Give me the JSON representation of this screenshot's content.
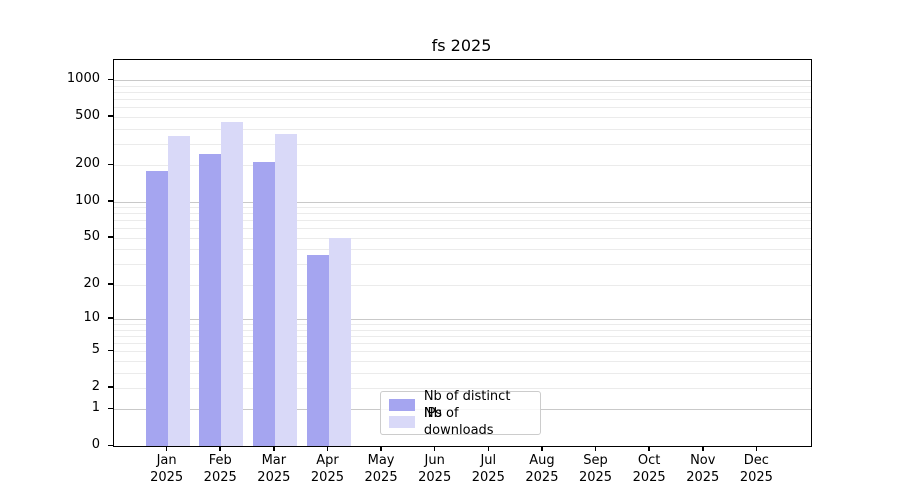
{
  "chart_data": {
    "type": "bar",
    "title": "fs 2025",
    "categories": [
      "Jan",
      "Feb",
      "Mar",
      "Apr",
      "May",
      "Jun",
      "Jul",
      "Aug",
      "Sep",
      "Oct",
      "Nov",
      "Dec"
    ],
    "x_tick_second_line": "2025",
    "series": [
      {
        "name": "Nb of distinct IPs",
        "color": "#a5a5f0",
        "values": [
          180,
          248,
          212,
          36,
          0,
          0,
          0,
          0,
          0,
          0,
          0,
          0
        ]
      },
      {
        "name": "Nb of downloads",
        "color": "#d9d9f8",
        "values": [
          350,
          452,
          362,
          50,
          0,
          0,
          0,
          0,
          0,
          0,
          0,
          0
        ]
      }
    ],
    "yscale": "log10(1+x)",
    "ylim": [
      0,
      1480
    ],
    "y_ticks": [
      0,
      1,
      2,
      5,
      10,
      20,
      50,
      100,
      200,
      500,
      1000
    ],
    "grid": {
      "major": [
        1,
        10,
        100,
        1000
      ],
      "minor": [
        2,
        3,
        4,
        5,
        6,
        7,
        8,
        9,
        20,
        30,
        40,
        50,
        60,
        70,
        80,
        90,
        200,
        300,
        400,
        500,
        600,
        700,
        800,
        900
      ]
    },
    "legend": {
      "position": "lower-center"
    }
  },
  "colors": {
    "background": "#ffffff",
    "axis": "#000000",
    "grid_major": "#c9c9c9",
    "grid_minor": "#ebebeb",
    "series_ips": "#a5a5f0",
    "series_downloads": "#d9d9f8"
  }
}
